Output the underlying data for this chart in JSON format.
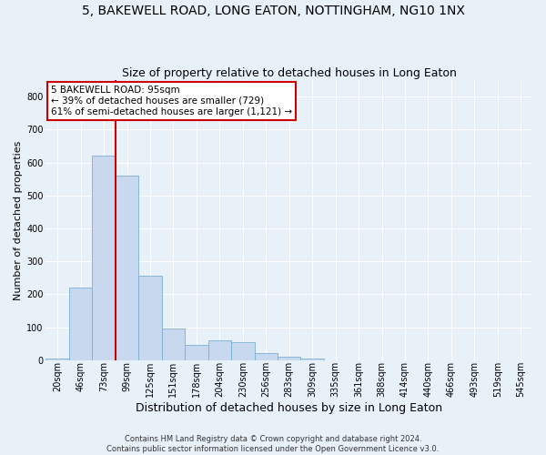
{
  "title": "5, BAKEWELL ROAD, LONG EATON, NOTTINGHAM, NG10 1NX",
  "subtitle": "Size of property relative to detached houses in Long Eaton",
  "xlabel": "Distribution of detached houses by size in Long Eaton",
  "ylabel": "Number of detached properties",
  "footer_line1": "Contains HM Land Registry data © Crown copyright and database right 2024.",
  "footer_line2": "Contains public sector information licensed under the Open Government Licence v3.0.",
  "bar_labels": [
    "20sqm",
    "46sqm",
    "73sqm",
    "99sqm",
    "125sqm",
    "151sqm",
    "178sqm",
    "204sqm",
    "230sqm",
    "256sqm",
    "283sqm",
    "309sqm",
    "335sqm",
    "361sqm",
    "388sqm",
    "414sqm",
    "440sqm",
    "466sqm",
    "493sqm",
    "519sqm",
    "545sqm"
  ],
  "bar_values": [
    5,
    220,
    620,
    560,
    255,
    95,
    45,
    60,
    55,
    20,
    10,
    5,
    0,
    0,
    0,
    0,
    0,
    0,
    0,
    0,
    0
  ],
  "bar_color": "#c8d8ee",
  "bar_edge_color": "#7aafd4",
  "background_color": "#e8f0f8",
  "grid_color": "#ffffff",
  "vline_color": "#cc0000",
  "vline_x_idx": 2.5,
  "annotation_text": "5 BAKEWELL ROAD: 95sqm\n← 39% of detached houses are smaller (729)\n61% of semi-detached houses are larger (1,121) →",
  "annotation_box_color": "#ffffff",
  "annotation_box_edge_color": "#cc0000",
  "ylim": [
    0,
    850
  ],
  "yticks": [
    0,
    100,
    200,
    300,
    400,
    500,
    600,
    700,
    800
  ],
  "title_fontsize": 10,
  "subtitle_fontsize": 9,
  "ylabel_fontsize": 8,
  "xlabel_fontsize": 9,
  "tick_fontsize": 7,
  "annotation_fontsize": 7.5,
  "footer_fontsize": 6
}
